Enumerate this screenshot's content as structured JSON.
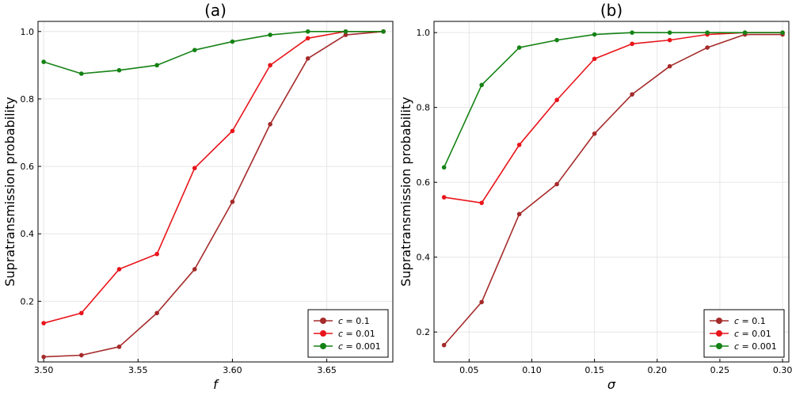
{
  "chart_data": [
    {
      "type": "line",
      "title": "(a)",
      "xlabel": "f",
      "ylabel": "Supratransmission probability",
      "grid": true,
      "legend_position": "bottom-right",
      "xlim": [
        3.497,
        3.685
      ],
      "ylim": [
        0.02,
        1.03
      ],
      "x_ticks": [
        3.5,
        3.55,
        3.6,
        3.65
      ],
      "x_tick_labels": [
        "3.50",
        "3.55",
        "3.60",
        "3.65"
      ],
      "y_ticks": [
        0.2,
        0.4,
        0.6,
        0.8,
        1.0
      ],
      "y_tick_labels": [
        "0.2",
        "0.4",
        "0.6",
        "0.8",
        "1.0"
      ],
      "x": [
        3.5,
        3.52,
        3.54,
        3.56,
        3.58,
        3.6,
        3.62,
        3.64,
        3.66,
        3.68
      ],
      "series": [
        {
          "name": "c = 0.1",
          "legend_var": "c",
          "legend_value": "0.1",
          "color": "#A52A2A",
          "values": [
            0.035,
            0.04,
            0.065,
            0.165,
            0.295,
            0.495,
            0.725,
            0.92,
            0.99,
            1.0
          ]
        },
        {
          "name": "c = 0.01",
          "legend_var": "c",
          "legend_value": "0.01",
          "color": "#E8141A",
          "values": [
            0.135,
            0.165,
            0.295,
            0.34,
            0.595,
            0.705,
            0.9,
            0.98,
            1.0,
            1.0
          ]
        },
        {
          "name": "c = 0.001",
          "legend_var": "c",
          "legend_value": "0.001",
          "color": "#148214",
          "values": [
            0.91,
            0.875,
            0.885,
            0.9,
            0.945,
            0.97,
            0.99,
            1.0,
            1.0,
            1.0
          ]
        }
      ]
    },
    {
      "type": "line",
      "title": "(b)",
      "xlabel": "σ",
      "ylabel": "Supratransmission probability",
      "grid": true,
      "legend_position": "bottom-right",
      "xlim": [
        0.022,
        0.305
      ],
      "ylim": [
        0.12,
        1.03
      ],
      "x_ticks": [
        0.05,
        0.1,
        0.15,
        0.2,
        0.25,
        0.3
      ],
      "x_tick_labels": [
        "0.05",
        "0.10",
        "0.15",
        "0.20",
        "0.25",
        "0.30"
      ],
      "y_ticks": [
        0.2,
        0.4,
        0.6,
        0.8,
        1.0
      ],
      "y_tick_labels": [
        "0.2",
        "0.4",
        "0.6",
        "0.8",
        "1.0"
      ],
      "x": [
        0.03,
        0.06,
        0.09,
        0.12,
        0.15,
        0.18,
        0.21,
        0.24,
        0.27,
        0.3
      ],
      "series": [
        {
          "name": "c = 0.1",
          "legend_var": "c",
          "legend_value": "0.1",
          "color": "#A52A2A",
          "values": [
            0.165,
            0.28,
            0.515,
            0.595,
            0.73,
            0.835,
            0.91,
            0.96,
            0.995,
            0.995
          ]
        },
        {
          "name": "c = 0.01",
          "legend_var": "c",
          "legend_value": "0.01",
          "color": "#E8141A",
          "values": [
            0.56,
            0.545,
            0.7,
            0.82,
            0.93,
            0.97,
            0.98,
            0.995,
            1.0,
            1.0
          ]
        },
        {
          "name": "c = 0.001",
          "legend_var": "c",
          "legend_value": "0.001",
          "color": "#148214",
          "values": [
            0.64,
            0.86,
            0.96,
            0.98,
            0.995,
            1.0,
            1.0,
            1.0,
            1.0,
            1.0
          ]
        }
      ]
    }
  ]
}
